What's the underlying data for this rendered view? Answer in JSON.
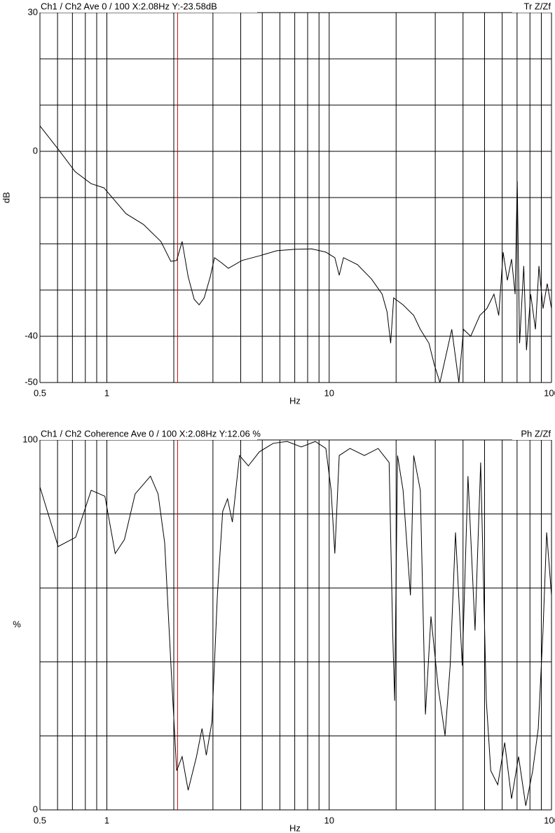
{
  "chart_data": [
    {
      "type": "line",
      "header": "Ch1 / Ch2  Ave 0 / 100  X:2.08Hz  Y:-23.58dB",
      "header_right": "Tr Z/Zf",
      "ylabel": "dB",
      "xlabel": "Hz",
      "xscale": "log",
      "xlim": [
        0.5,
        100
      ],
      "xticks": [
        0.5,
        1,
        10,
        100
      ],
      "xgrid": [
        0.5,
        0.6,
        0.7,
        0.8,
        0.9,
        1,
        2,
        3,
        4,
        5,
        6,
        7,
        8,
        9,
        10,
        20,
        30,
        40,
        50,
        60,
        70,
        80,
        90,
        100
      ],
      "ylim": [
        -50,
        30
      ],
      "yticks": [
        30,
        0,
        -40,
        -50
      ],
      "ygrid": [
        30,
        20,
        10,
        0,
        -10,
        -20,
        -30,
        -40,
        -50
      ],
      "cursor_x": 2.08,
      "cursor_color": "#cc0000",
      "series": [
        {
          "color": "#000000",
          "x": [
            0.5,
            0.61,
            0.72,
            0.85,
            0.97,
            1.22,
            1.46,
            1.75,
            1.94,
            2.06,
            2.18,
            2.32,
            2.47,
            2.6,
            2.74,
            2.92,
            3.05,
            3.28,
            3.52,
            4.05,
            4.85,
            5.81,
            6.97,
            8.35,
            9.66,
            10.6,
            11.1,
            11.6,
            13.4,
            15.5,
            17.3,
            18.2,
            18.9,
            19.5,
            21.5,
            24.0,
            25.7,
            28.1,
            29.7,
            31.5,
            35.6,
            38.3,
            40.2,
            43.3,
            47.6,
            51.2,
            55.1,
            57.9,
            60.6,
            63.3,
            66.1,
            68.6,
            70.1,
            71.9,
            75.0,
            77.2,
            80.6,
            84.7,
            87.8,
            91.6,
            95.7,
            100
          ],
          "values": [
            5.5,
            0.2,
            -4.4,
            -7.0,
            -7.9,
            -13.5,
            -15.8,
            -19.5,
            -23.8,
            -23.6,
            -19.5,
            -27.1,
            -32.0,
            -33.2,
            -31.7,
            -27.1,
            -23.0,
            -24.1,
            -25.3,
            -23.6,
            -22.6,
            -21.5,
            -21.2,
            -21.1,
            -21.8,
            -23.0,
            -26.8,
            -23.0,
            -24.5,
            -27.6,
            -30.9,
            -34.7,
            -41.5,
            -31.7,
            -33.2,
            -35.5,
            -38.5,
            -41.5,
            -46.1,
            -50,
            -38.5,
            -50,
            -38.5,
            -40,
            -35.5,
            -34.0,
            -30.9,
            -35.5,
            -21.8,
            -27.9,
            -23.3,
            -30.9,
            -6.4,
            -41.5,
            -24.8,
            -43.0,
            -30.9,
            -38.5,
            -24.8,
            -34.0,
            -28.6,
            -34.0
          ]
        }
      ]
    },
    {
      "type": "line",
      "header": "Ch1 / Ch2  Coherence Ave 0 / 100  X:2.08Hz  Y:12.06 %",
      "header_right": "Ph Z/Zf",
      "ylabel": "%",
      "xlabel": "Hz",
      "xscale": "log",
      "xlim": [
        0.5,
        100
      ],
      "xticks": [
        0.5,
        1,
        10,
        100
      ],
      "xgrid": [
        0.5,
        0.6,
        0.7,
        0.8,
        0.9,
        1,
        2,
        3,
        4,
        5,
        6,
        7,
        8,
        9,
        10,
        20,
        30,
        40,
        50,
        60,
        70,
        80,
        90,
        100
      ],
      "ylim": [
        0,
        100
      ],
      "yticks": [
        100,
        0
      ],
      "ygrid": [
        100,
        80,
        60,
        40,
        20,
        0
      ],
      "cursor_x": 2.08,
      "cursor_color": "#cc0000",
      "series": [
        {
          "color": "#000000",
          "x": [
            0.5,
            0.604,
            0.724,
            0.85,
            0.98,
            1.09,
            1.2,
            1.34,
            1.57,
            1.7,
            1.82,
            1.95,
            2.06,
            2.18,
            2.32,
            2.53,
            2.68,
            2.8,
            2.97,
            3.14,
            3.32,
            3.49,
            3.67,
            3.95,
            4.33,
            4.85,
            5.6,
            6.47,
            7.49,
            8.66,
            9.66,
            10.2,
            10.6,
            11.1,
            12.4,
            14.4,
            16.6,
            18.6,
            19.3,
            19.7,
            20.3,
            21.5,
            23.2,
            24.0,
            25.7,
            27.1,
            28.7,
            30.9,
            33.2,
            35.0,
            37.0,
            39.7,
            42.1,
            45.3,
            48.0,
            50.9,
            53.3,
            57.3,
            61.6,
            66.1,
            71.1,
            76.6,
            82.3,
            87.2,
            91.6,
            95.1,
            100
          ],
          "values": [
            87.3,
            71.2,
            73.7,
            86.4,
            84.8,
            69.3,
            73.1,
            85.4,
            90.2,
            85.4,
            72.2,
            37.1,
            10.6,
            14.4,
            5.3,
            14.4,
            22.0,
            14.8,
            23.9,
            58.0,
            80.7,
            84.1,
            77.8,
            95.8,
            93.0,
            96.8,
            99.1,
            99.6,
            98.1,
            99.6,
            97.7,
            86.4,
            69.3,
            95.8,
            97.7,
            95.8,
            97.7,
            93.9,
            48.5,
            29.5,
            95.8,
            86.4,
            58.0,
            95.8,
            86.4,
            25.8,
            52.3,
            33.3,
            20.1,
            39.0,
            75.0,
            39.0,
            90.2,
            48.5,
            93.9,
            29.5,
            10.6,
            6.8,
            18.2,
            3.0,
            14.4,
            1.1,
            10.6,
            22.0,
            48.5,
            75.0,
            58.0
          ]
        }
      ]
    }
  ]
}
